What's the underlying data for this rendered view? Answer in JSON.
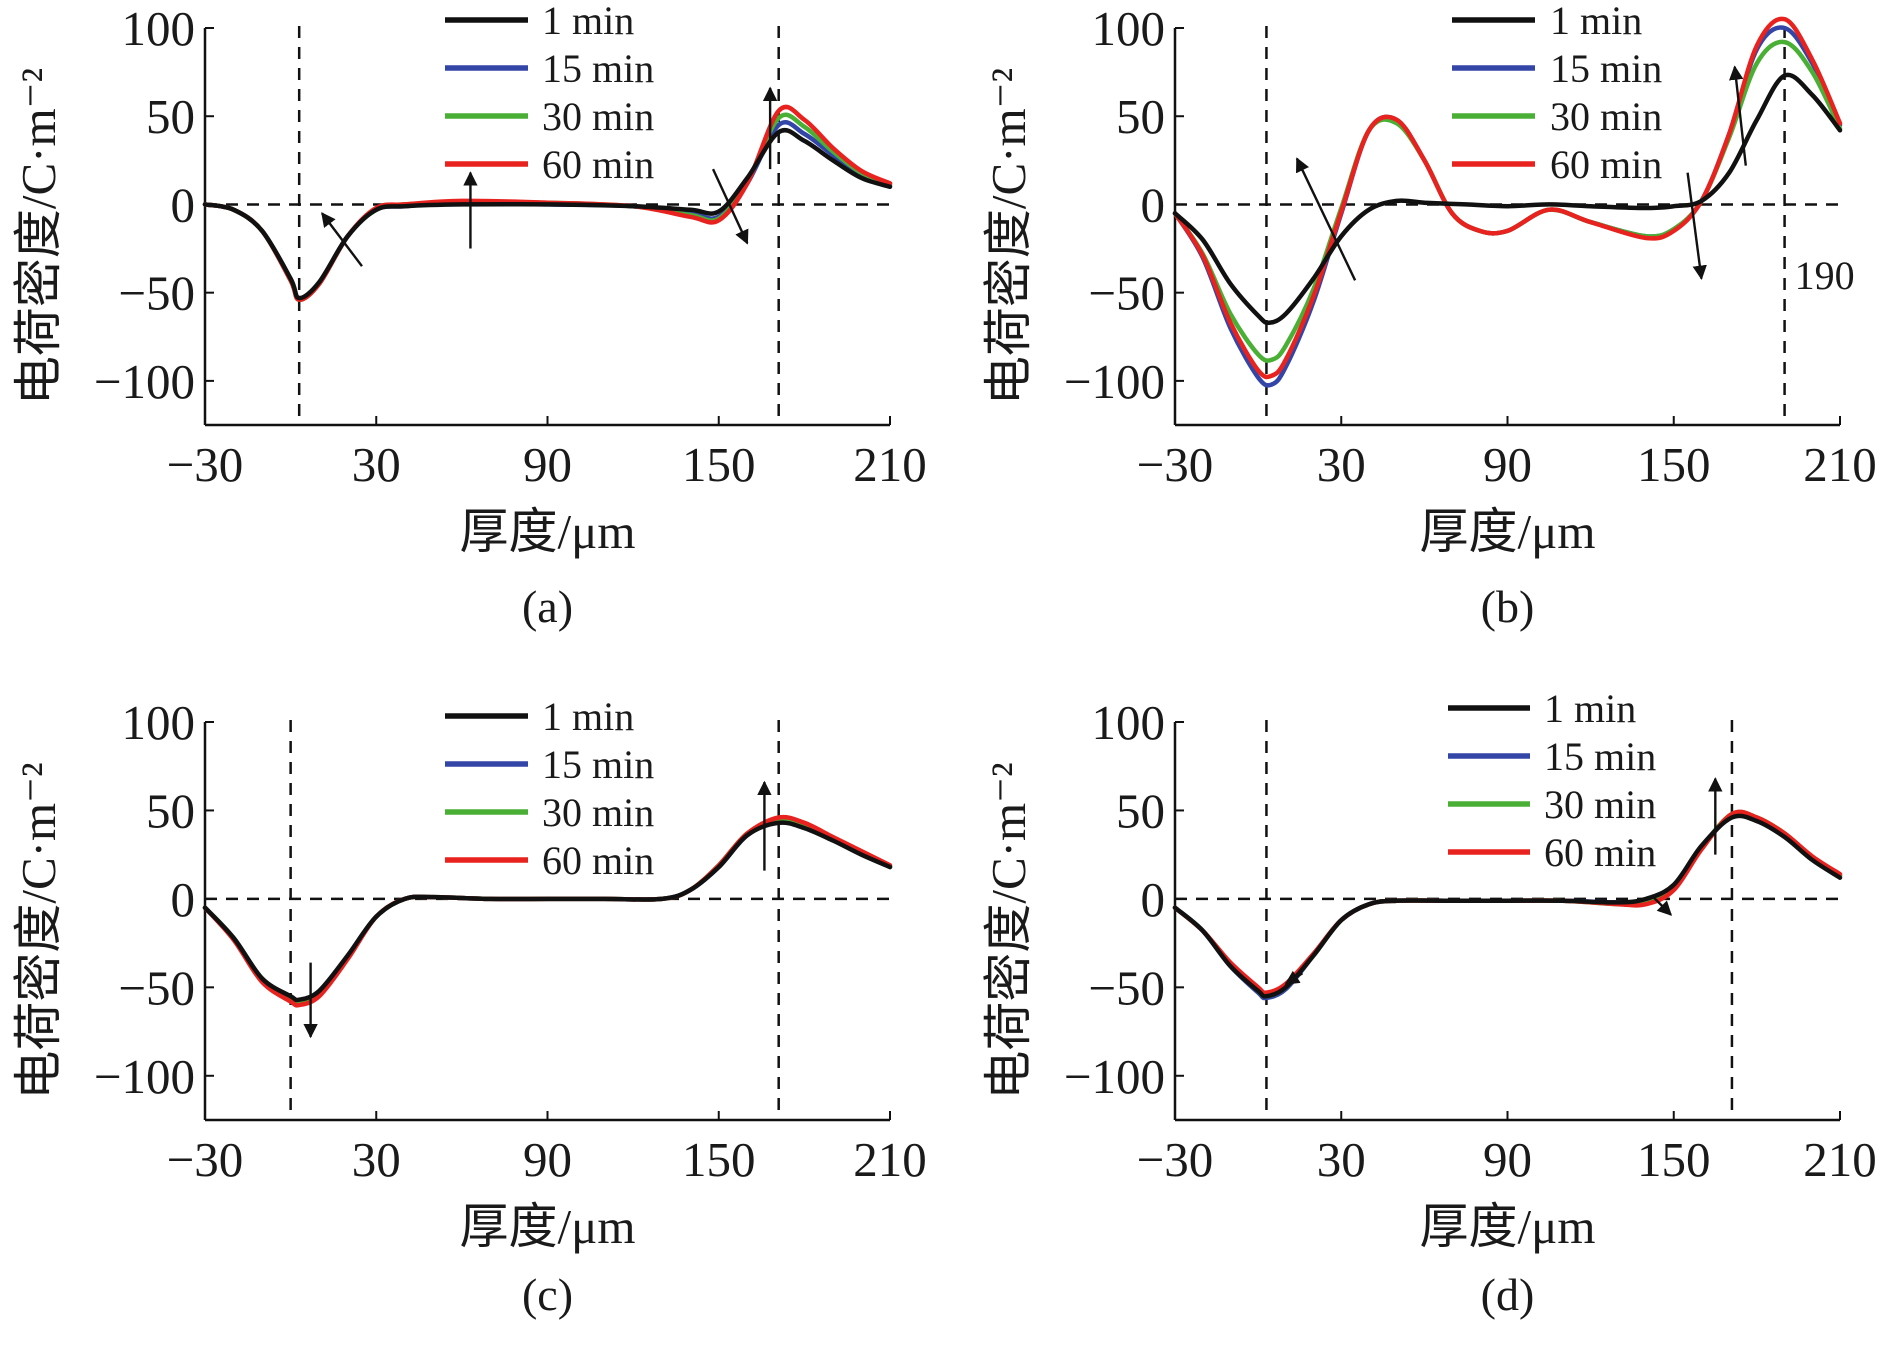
{
  "chart_data": [
    {
      "type": "line",
      "caption": "(a)",
      "xlabel": "厚度/μm",
      "ylabel": "电荷密度/C·m⁻²",
      "xlim": [
        -30,
        210
      ],
      "ylim": [
        -125,
        100
      ],
      "xticks": [
        "−30",
        "30",
        "90",
        "150",
        "210"
      ],
      "yticks": [
        "100",
        "50",
        "0",
        "−50",
        "−100"
      ],
      "legend": "top-center",
      "guides": {
        "hline": 0,
        "vlines": [
          3,
          171
        ]
      },
      "series": [
        {
          "name": "1 min",
          "color": "#111111",
          "x": [
            -30,
            -20,
            -10,
            0,
            3,
            10,
            20,
            30,
            40,
            60,
            90,
            120,
            140,
            150,
            160,
            171,
            180,
            190,
            200,
            210
          ],
          "y": [
            0,
            -3,
            -15,
            -42,
            -53,
            -44,
            -18,
            -3,
            -1,
            0,
            0,
            -1,
            -3,
            -4,
            15,
            41,
            36,
            25,
            15,
            10
          ]
        },
        {
          "name": "15 min",
          "color": "#3346a8",
          "x": [
            -30,
            -20,
            -10,
            0,
            3,
            10,
            20,
            30,
            40,
            60,
            90,
            120,
            140,
            150,
            160,
            171,
            180,
            190,
            200,
            210
          ],
          "y": [
            0,
            -3,
            -15,
            -43,
            -54,
            -45,
            -18,
            -3,
            -1,
            1,
            0,
            -1,
            -5,
            -7,
            12,
            45,
            40,
            28,
            17,
            11
          ]
        },
        {
          "name": "30 min",
          "color": "#49b035",
          "x": [
            -30,
            -20,
            -10,
            0,
            3,
            10,
            20,
            30,
            40,
            60,
            90,
            120,
            140,
            150,
            160,
            171,
            180,
            190,
            200,
            210
          ],
          "y": [
            0,
            -3,
            -15,
            -43,
            -54,
            -45,
            -18,
            -3,
            0,
            1,
            1,
            -1,
            -6,
            -8,
            13,
            49,
            44,
            30,
            18,
            12
          ]
        },
        {
          "name": "60 min",
          "color": "#e8221e",
          "x": [
            -30,
            -20,
            -10,
            0,
            3,
            10,
            20,
            30,
            40,
            60,
            90,
            120,
            140,
            150,
            160,
            171,
            180,
            190,
            200,
            210
          ],
          "y": [
            0,
            -3,
            -15,
            -43,
            -54,
            -45,
            -18,
            -2,
            0,
            2,
            1,
            -1,
            -7,
            -9,
            12,
            53,
            48,
            32,
            19,
            12
          ]
        }
      ],
      "arrows": [
        {
          "from": [
            25,
            -35
          ],
          "to": [
            11,
            -5
          ]
        },
        {
          "from": [
            63,
            -25
          ],
          "to": [
            63,
            18
          ]
        },
        {
          "from": [
            148,
            20
          ],
          "to": [
            160,
            -22
          ]
        },
        {
          "from": [
            168,
            20
          ],
          "to": [
            168,
            66
          ]
        }
      ]
    },
    {
      "type": "line",
      "caption": "(b)",
      "xlabel": "厚度/μm",
      "ylabel": "电荷密度/C·m⁻²",
      "xlim": [
        -30,
        210
      ],
      "ylim": [
        -125,
        100
      ],
      "xticks": [
        "−30",
        "30",
        "90",
        "150",
        "210"
      ],
      "yticks": [
        "100",
        "50",
        "0",
        "−50",
        "−100"
      ],
      "legend": "top-center",
      "annotations": [
        "190"
      ],
      "guides": {
        "hline": 0,
        "vlines": [
          3,
          190
        ]
      },
      "series": [
        {
          "name": "1 min",
          "color": "#111111",
          "x": [
            -30,
            -20,
            -10,
            0,
            4,
            10,
            20,
            30,
            40,
            50,
            60,
            75,
            90,
            105,
            120,
            140,
            150,
            160,
            170,
            180,
            190,
            200,
            210
          ],
          "y": [
            -5,
            -20,
            -45,
            -63,
            -67,
            -62,
            -42,
            -18,
            -3,
            2,
            1,
            0,
            -1,
            0,
            -1,
            -2,
            -1,
            2,
            18,
            48,
            73,
            62,
            42
          ]
        },
        {
          "name": "15 min",
          "color": "#3346a8",
          "x": [
            -30,
            -20,
            -10,
            0,
            5,
            10,
            20,
            30,
            40,
            50,
            60,
            70,
            80,
            90,
            105,
            120,
            140,
            150,
            160,
            170,
            180,
            190,
            200,
            210
          ],
          "y": [
            -5,
            -30,
            -70,
            -98,
            -102,
            -92,
            -55,
            -5,
            42,
            48,
            25,
            -5,
            -15,
            -15,
            -3,
            -10,
            -18,
            -14,
            2,
            40,
            88,
            100,
            80,
            45
          ]
        },
        {
          "name": "30 min",
          "color": "#49b035",
          "x": [
            -30,
            -20,
            -10,
            0,
            5,
            10,
            20,
            30,
            40,
            50,
            60,
            70,
            80,
            90,
            105,
            120,
            140,
            150,
            160,
            170,
            180,
            190,
            200,
            210
          ],
          "y": [
            -5,
            -28,
            -62,
            -85,
            -88,
            -80,
            -48,
            -2,
            42,
            46,
            25,
            -5,
            -15,
            -15,
            -3,
            -10,
            -18,
            -14,
            2,
            38,
            80,
            92,
            75,
            43
          ]
        },
        {
          "name": "60 min",
          "color": "#e8221e",
          "x": [
            -30,
            -20,
            -10,
            0,
            5,
            10,
            20,
            30,
            40,
            50,
            60,
            70,
            80,
            90,
            105,
            120,
            140,
            150,
            160,
            170,
            180,
            190,
            200,
            210
          ],
          "y": [
            -5,
            -29,
            -67,
            -94,
            -97,
            -88,
            -52,
            -4,
            42,
            48,
            25,
            -5,
            -15,
            -15,
            -3,
            -10,
            -19,
            -15,
            2,
            40,
            90,
            105,
            82,
            46
          ]
        }
      ],
      "arrows": [
        {
          "from": [
            35,
            -43
          ],
          "to": [
            14,
            26
          ]
        },
        {
          "from": [
            155,
            18
          ],
          "to": [
            160,
            -42
          ]
        },
        {
          "from": [
            176,
            22
          ],
          "to": [
            172,
            78
          ]
        }
      ]
    },
    {
      "type": "line",
      "caption": "(c)",
      "xlabel": "厚度/μm",
      "ylabel": "电荷密度/C·m⁻²",
      "xlim": [
        -30,
        210
      ],
      "ylim": [
        -125,
        100
      ],
      "xticks": [
        "−30",
        "30",
        "90",
        "150",
        "210"
      ],
      "yticks": [
        "100",
        "50",
        "0",
        "−50",
        "−100"
      ],
      "legend": "top-center",
      "guides": {
        "hline": 0,
        "vlines": [
          0,
          171
        ]
      },
      "series": [
        {
          "name": "1 min",
          "color": "#111111",
          "x": [
            -30,
            -20,
            -10,
            0,
            3,
            10,
            20,
            30,
            40,
            50,
            70,
            90,
            110,
            130,
            140,
            150,
            160,
            171,
            180,
            190,
            200,
            210
          ],
          "y": [
            -5,
            -22,
            -45,
            -55,
            -57,
            -52,
            -32,
            -10,
            0,
            1,
            0,
            0,
            0,
            0,
            5,
            18,
            36,
            43,
            40,
            33,
            25,
            18
          ]
        },
        {
          "name": "15 min",
          "color": "#3346a8",
          "x": [
            -30,
            -20,
            -10,
            0,
            3,
            10,
            20,
            30,
            40,
            50,
            70,
            90,
            110,
            130,
            140,
            150,
            160,
            171,
            180,
            190,
            200,
            210
          ],
          "y": [
            -5,
            -22,
            -45,
            -56,
            -58,
            -53,
            -33,
            -10,
            0,
            1,
            0,
            0,
            0,
            0,
            5,
            18,
            36,
            44,
            41,
            34,
            26,
            18
          ]
        },
        {
          "name": "30 min",
          "color": "#49b035",
          "x": [
            -30,
            -20,
            -10,
            0,
            3,
            10,
            20,
            30,
            40,
            50,
            70,
            90,
            110,
            130,
            140,
            150,
            160,
            171,
            180,
            190,
            200,
            210
          ],
          "y": [
            -5,
            -22,
            -46,
            -57,
            -59,
            -54,
            -33,
            -10,
            0,
            1,
            0,
            0,
            0,
            0,
            5,
            19,
            37,
            45,
            42,
            34,
            26,
            18
          ]
        },
        {
          "name": "60 min",
          "color": "#e8221e",
          "x": [
            -30,
            -20,
            -10,
            0,
            3,
            10,
            20,
            30,
            40,
            50,
            70,
            90,
            110,
            130,
            140,
            150,
            160,
            171,
            180,
            190,
            200,
            210
          ],
          "y": [
            -5,
            -23,
            -47,
            -58,
            -60,
            -55,
            -34,
            -10,
            0,
            1,
            0,
            0,
            0,
            0,
            5,
            19,
            37,
            46,
            43,
            35,
            27,
            19
          ]
        }
      ],
      "arrows": [
        {
          "from": [
            7,
            -36
          ],
          "to": [
            7,
            -78
          ]
        },
        {
          "from": [
            166,
            16
          ],
          "to": [
            166,
            66
          ]
        }
      ]
    },
    {
      "type": "line",
      "caption": "(d)",
      "xlabel": "厚度/μm",
      "ylabel": "电荷密度/C·m⁻²",
      "xlim": [
        -30,
        210
      ],
      "ylim": [
        -125,
        100
      ],
      "xticks": [
        "−30",
        "30",
        "90",
        "150",
        "210"
      ],
      "yticks": [
        "100",
        "50",
        "0",
        "−50",
        "−100"
      ],
      "legend": "top-center",
      "guides": {
        "hline": 0,
        "vlines": [
          3,
          171
        ]
      },
      "series": [
        {
          "name": "1 min",
          "color": "#111111",
          "x": [
            -30,
            -20,
            -10,
            0,
            3,
            10,
            20,
            30,
            40,
            50,
            70,
            90,
            110,
            130,
            140,
            150,
            160,
            171,
            180,
            190,
            200,
            210
          ],
          "y": [
            -5,
            -18,
            -38,
            -52,
            -55,
            -50,
            -32,
            -12,
            -3,
            -1,
            -1,
            -1,
            -1,
            -2,
            0,
            8,
            30,
            46,
            44,
            35,
            22,
            12
          ]
        },
        {
          "name": "15 min",
          "color": "#3346a8",
          "x": [
            -30,
            -20,
            -10,
            0,
            3,
            10,
            20,
            30,
            40,
            50,
            70,
            90,
            110,
            130,
            140,
            150,
            160,
            171,
            180,
            190,
            200,
            210
          ],
          "y": [
            -5,
            -18,
            -38,
            -53,
            -56,
            -51,
            -32,
            -12,
            -3,
            -1,
            -1,
            -1,
            -1,
            -2,
            -1,
            7,
            29,
            47,
            45,
            36,
            23,
            13
          ]
        },
        {
          "name": "30 min",
          "color": "#49b035",
          "x": [
            -30,
            -20,
            -10,
            0,
            3,
            10,
            20,
            30,
            40,
            50,
            70,
            90,
            110,
            130,
            140,
            150,
            160,
            171,
            180,
            190,
            200,
            210
          ],
          "y": [
            -5,
            -18,
            -37,
            -52,
            -55,
            -50,
            -32,
            -12,
            -3,
            -1,
            -1,
            -1,
            -1,
            -3,
            -2,
            6,
            29,
            48,
            46,
            37,
            23,
            13
          ]
        },
        {
          "name": "60 min",
          "color": "#e8221e",
          "x": [
            -30,
            -20,
            -10,
            0,
            3,
            10,
            20,
            30,
            40,
            50,
            70,
            90,
            110,
            130,
            140,
            150,
            160,
            171,
            180,
            190,
            200,
            210
          ],
          "y": [
            -5,
            -18,
            -36,
            -50,
            -53,
            -48,
            -31,
            -12,
            -3,
            -1,
            -1,
            -1,
            -1,
            -3,
            -3,
            5,
            28,
            48,
            46,
            37,
            24,
            14
          ]
        }
      ],
      "arrows": [
        {
          "from": [
            16,
            -42
          ],
          "to": [
            10,
            -48
          ]
        },
        {
          "from": [
            142,
            2
          ],
          "to": [
            149,
            -9
          ]
        },
        {
          "from": [
            165,
            25
          ],
          "to": [
            165,
            68
          ]
        }
      ]
    }
  ]
}
